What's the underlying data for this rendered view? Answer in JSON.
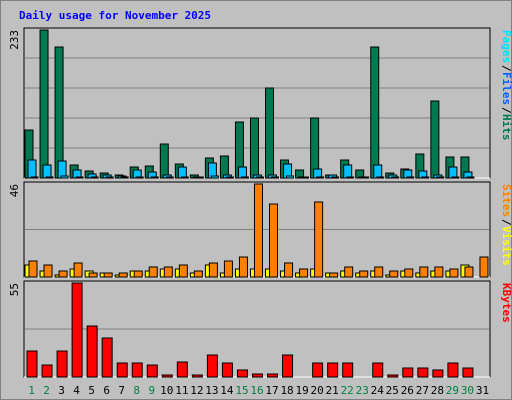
{
  "title": "Daily usage for November 2025",
  "colors": {
    "hits": "#007850",
    "files": "#00c0ff",
    "pages": "#00e0ff",
    "visits": "#ffff00",
    "sites": "#ff8000",
    "kbytes": "#ff0000",
    "weekday": "#000000",
    "weekend": "#008040"
  },
  "chart_data": [
    {
      "type": "bar",
      "title": "Daily usage for November 2025",
      "ylabel_max": "233",
      "legend": [
        "Pages",
        "Files",
        "Hits"
      ],
      "categories": [
        "1",
        "2",
        "3",
        "4",
        "5",
        "6",
        "7",
        "8",
        "9",
        "10",
        "11",
        "12",
        "13",
        "14",
        "15",
        "16",
        "17",
        "18",
        "19",
        "20",
        "21",
        "22",
        "23",
        "24",
        "25",
        "26",
        "27",
        "28",
        "29",
        "30",
        "31"
      ],
      "ylim": [
        0,
        233
      ],
      "series": [
        {
          "name": "Hits",
          "values": [
            75,
            233,
            207,
            21,
            11,
            8,
            4,
            18,
            19,
            53,
            22,
            4,
            31,
            35,
            88,
            95,
            141,
            29,
            12,
            95,
            4,
            29,
            12,
            207,
            8,
            14,
            37,
            122,
            33,
            33,
            0
          ]
        },
        {
          "name": "Files",
          "values": [
            29,
            20,
            26,
            13,
            6,
            5,
            3,
            12,
            10,
            4,
            18,
            2,
            23,
            4,
            18,
            4,
            5,
            22,
            2,
            14,
            4,
            20,
            2,
            21,
            4,
            13,
            11,
            4,
            18,
            9,
            0
          ]
        },
        {
          "name": "Pages",
          "values": [
            2,
            2,
            3,
            2,
            1,
            1,
            1,
            2,
            2,
            1,
            2,
            1,
            3,
            1,
            2,
            1,
            2,
            3,
            1,
            2,
            1,
            2,
            1,
            2,
            1,
            2,
            2,
            1,
            2,
            1,
            0
          ]
        }
      ]
    },
    {
      "type": "bar",
      "ylabel_max": "46",
      "legend": [
        "Sites",
        "Visits"
      ],
      "categories": [
        "1",
        "2",
        "3",
        "4",
        "5",
        "6",
        "7",
        "8",
        "9",
        "10",
        "11",
        "12",
        "13",
        "14",
        "15",
        "16",
        "17",
        "18",
        "19",
        "20",
        "21",
        "22",
        "23",
        "24",
        "25",
        "26",
        "27",
        "28",
        "29",
        "30",
        "31"
      ],
      "ylim": [
        0,
        46
      ],
      "series": [
        {
          "name": "Visits",
          "values": [
            6,
            3,
            1,
            4,
            3,
            2,
            1,
            3,
            3,
            4,
            4,
            2,
            6,
            2,
            4,
            4,
            4,
            3,
            2,
            4,
            2,
            3,
            2,
            3,
            1,
            3,
            2,
            3,
            3,
            6,
            0
          ]
        },
        {
          "name": "Sites",
          "values": [
            8,
            6,
            3,
            7,
            2,
            2,
            2,
            3,
            5,
            5,
            6,
            3,
            7,
            8,
            10,
            46,
            36,
            7,
            4,
            37,
            2,
            5,
            3,
            5,
            3,
            4,
            5,
            5,
            4,
            5,
            10
          ]
        }
      ]
    },
    {
      "type": "bar",
      "ylabel_max": "55",
      "legend": [
        "KBytes"
      ],
      "categories": [
        "1",
        "2",
        "3",
        "4",
        "5",
        "6",
        "7",
        "8",
        "9",
        "10",
        "11",
        "12",
        "13",
        "14",
        "15",
        "16",
        "17",
        "18",
        "19",
        "20",
        "21",
        "22",
        "23",
        "24",
        "25",
        "26",
        "27",
        "28",
        "29",
        "30",
        "31"
      ],
      "ylim": [
        0,
        55
      ],
      "series": [
        {
          "name": "KBytes",
          "values": [
            15,
            7,
            15,
            55,
            30,
            23,
            8,
            8,
            7,
            1,
            9,
            1,
            13,
            8,
            4,
            2,
            2,
            13,
            0,
            8,
            8,
            8,
            0,
            8,
            1,
            5,
            5,
            4,
            8,
            5,
            0
          ]
        }
      ]
    }
  ]
}
